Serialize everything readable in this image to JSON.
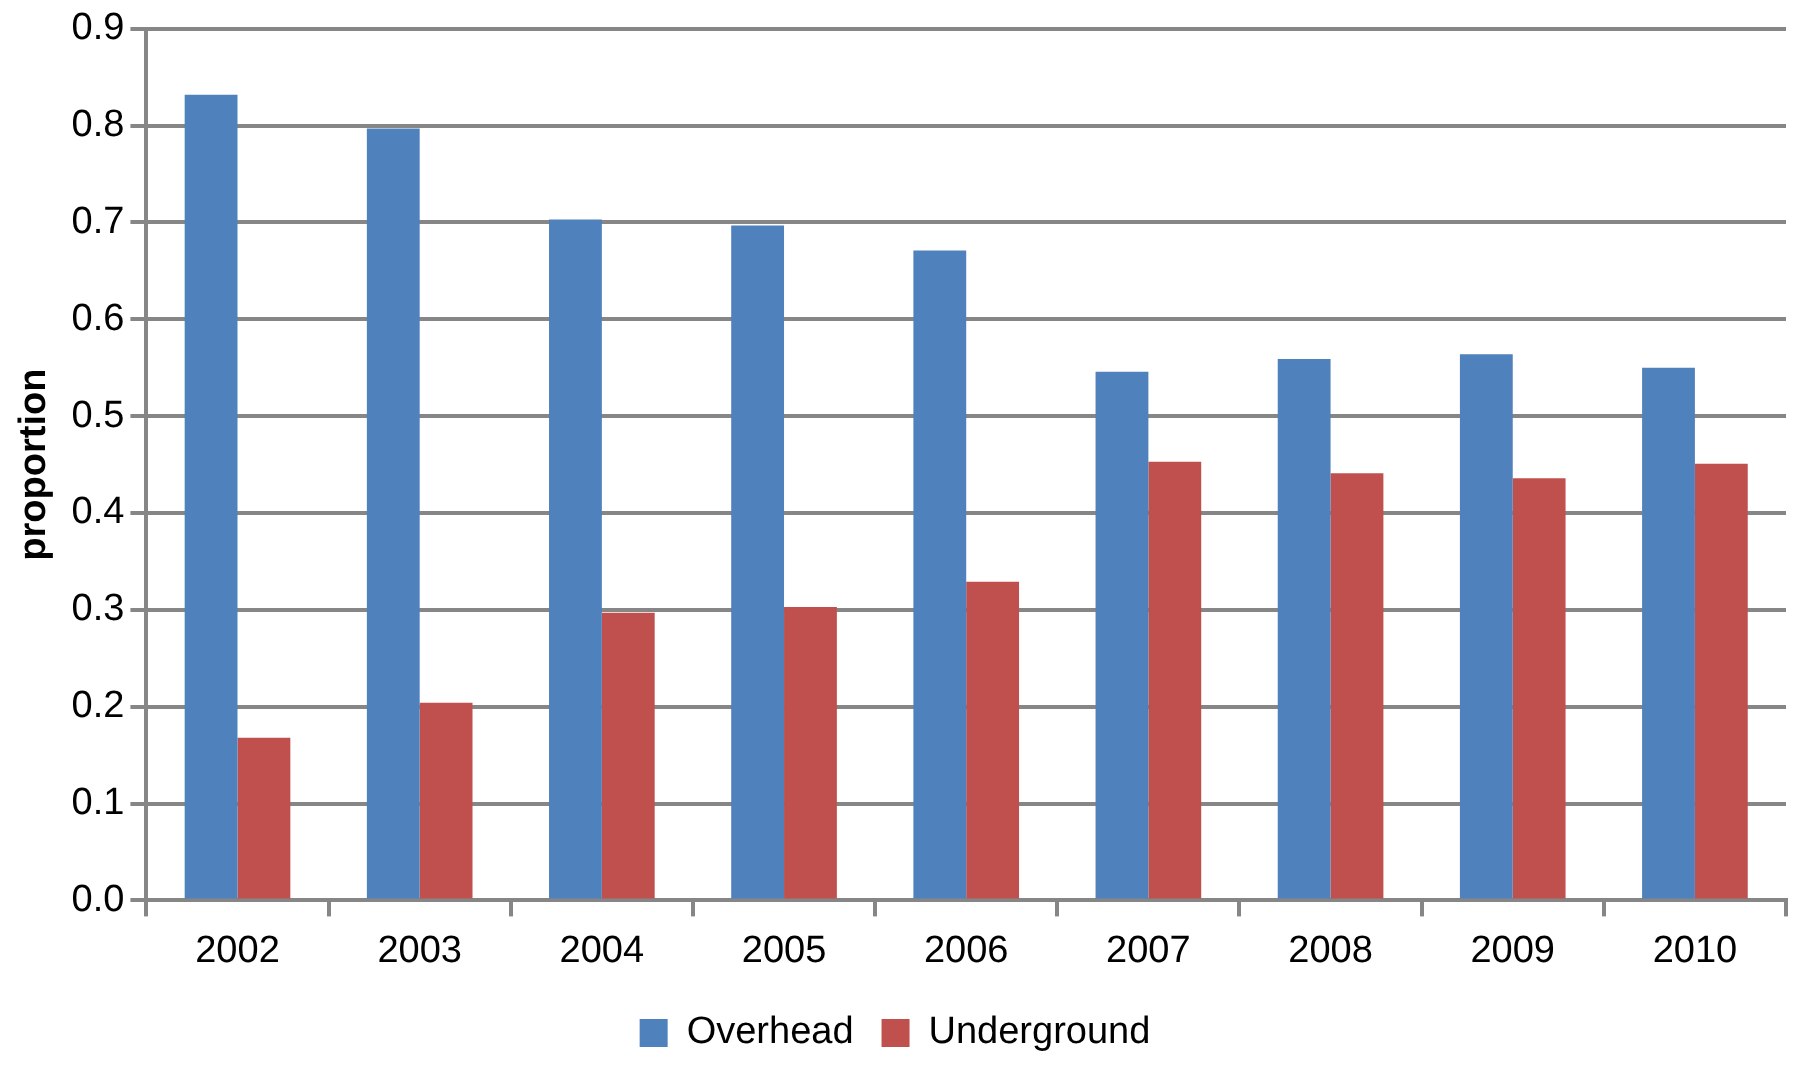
{
  "chart_data": {
    "type": "bar",
    "ylabel": "proportion",
    "categories": [
      "2002",
      "2003",
      "2004",
      "2005",
      "2006",
      "2007",
      "2008",
      "2009",
      "2010"
    ],
    "series": [
      {
        "name": "Overhead",
        "color": "#4f81bd",
        "values": [
          0.832,
          0.797,
          0.703,
          0.697,
          0.671,
          0.546,
          0.559,
          0.564,
          0.55
        ]
      },
      {
        "name": "Underground",
        "color": "#c0504d",
        "values": [
          0.168,
          0.204,
          0.297,
          0.303,
          0.329,
          0.453,
          0.441,
          0.436,
          0.451
        ]
      }
    ],
    "ylim": [
      0,
      0.9
    ],
    "yticks": [
      {
        "value": 0,
        "label": "0.0"
      },
      0.1,
      0.2,
      0.3,
      0.4,
      0.5,
      0.6,
      0.7,
      0.8,
      0.9
    ],
    "grid": "y",
    "legend": "bottom"
  }
}
